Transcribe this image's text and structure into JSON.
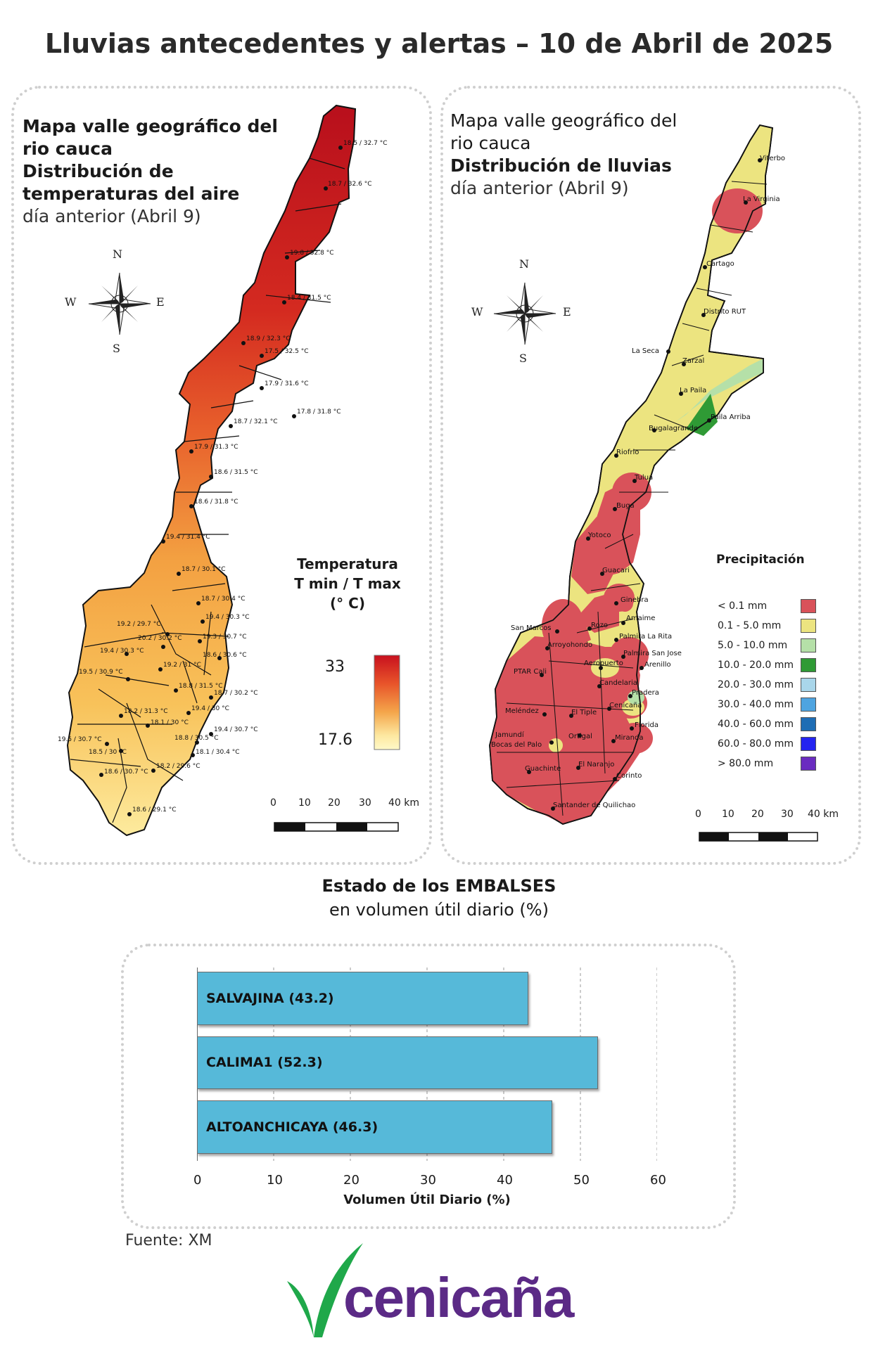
{
  "title": "Lluvias antecedentes y alertas – 10 de Abril de 2025",
  "temp_panel": {
    "title_line1": "Mapa valle geográfico del",
    "title_line2": "rio cauca",
    "title_line3": "Distribución de",
    "title_line4": "temperaturas del aire",
    "subtitle": "día anterior (Abril 9)",
    "legend_title_line1": "Temperatura",
    "legend_title_line2": "T min / T max",
    "legend_title_line3": "(° C)",
    "legend_max": "33",
    "legend_min": "17.6",
    "gradient_colors": [
      "#c8101e",
      "#e8542a",
      "#f4a54a",
      "#fde8a0",
      "#fff9c8"
    ],
    "stations": [
      "18.5 / 32.7 °C",
      "18.7 / 32.6 °C",
      "19.8 / 32.8 °C",
      "18.4 / 31.5 °C",
      "18.9 / 32.3 °C",
      "17.5 / 32.5 °C",
      "17.9 / 31.6 °C",
      "17.8 / 31.8 °C",
      "18.7 / 32.1 °C",
      "17.9 / 31.3 °C",
      "18.6 / 31.5 °C",
      "18.6 / 31.8 °C",
      "19.4 / 31.4 °C",
      "18.7 / 30.1 °C",
      "18.7 / 30.4 °C",
      "19.4 / 30.3 °C",
      "19.2 / 29.7 °C",
      "20.2 / 30.2 °C",
      "19.3 / 30.7 °C",
      "19.4 / 30.3 °C",
      "18.6 / 30.6 °C",
      "19.5 / 30.9 °C",
      "19.2 / 31 °C",
      "18.8 / 31.5 °C",
      "18.7 / 30.2 °C",
      "18.2 / 31.3 °C",
      "19.4 / 30 °C",
      "18.1 / 30 °C",
      "19.4 / 30.7 °C",
      "19.5 / 30.7 °C",
      "18.8 / 30.5 °C",
      "18.5 / 30 °C",
      "18.1 / 30.4 °C",
      "18.6 / 30.7 °C",
      "18.2 / 29.6 °C",
      "18.6 / 29.1 °C"
    ],
    "compass": {
      "n": "N",
      "s": "S",
      "e": "E",
      "w": "W"
    },
    "scale": [
      "0",
      "10",
      "20",
      "30",
      "40 km"
    ]
  },
  "rain_panel": {
    "title_line1": "Mapa valle geográfico del",
    "title_line2": "rio cauca",
    "title_line3": "Distribución de lluvias",
    "subtitle": "día anterior (Abril 9)",
    "legend_title": "Precipitación",
    "legend": [
      {
        "label": "< 0.1 mm",
        "color": "#d9525a"
      },
      {
        "label": "0.1 - 5.0 mm",
        "color": "#ece480"
      },
      {
        "label": "5.0 - 10.0 mm",
        "color": "#b5e0a8"
      },
      {
        "label": "10.0 - 20.0 mm",
        "color": "#2f9a35"
      },
      {
        "label": "20.0 - 30.0 mm",
        "color": "#a9d6ea"
      },
      {
        "label": "30.0 - 40.0 mm",
        "color": "#4ea4e0"
      },
      {
        "label": "40.0 - 60.0 mm",
        "color": "#1e6db4"
      },
      {
        "label": "60.0 - 80.0 mm",
        "color": "#2424f0"
      },
      {
        "label": "> 80.0 mm",
        "color": "#6a2cc0"
      }
    ],
    "places": [
      "Viterbo",
      "La Virginia",
      "Cartago",
      "Distrito RUT",
      "La Seca",
      "Zarzal",
      "La Paila",
      "Paila Arriba",
      "Bugalagrande",
      "Riofrio",
      "Tulua",
      "Buga",
      "Yotoco",
      "Guacari",
      "Ginebra",
      "San Marcos",
      "Rozo",
      "Amaime",
      "Palmira La Rita",
      "Arroyohondo",
      "Palmira San Jose",
      "Aeropuerto",
      "Arenillo",
      "PTAR Cali",
      "Candelaria",
      "Pradera",
      "Cenicaña",
      "Meléndez",
      "El Tiple",
      "Florida",
      "Jamundí",
      "Bocas del Palo",
      "Ortigal",
      "Miranda",
      "El Naranjo",
      "Guachinte",
      "Corinto",
      "Santander de Quilichao"
    ],
    "compass": {
      "n": "N",
      "s": "S",
      "e": "E",
      "w": "W"
    },
    "scale": [
      "0",
      "10",
      "20",
      "30",
      "40 km"
    ]
  },
  "reservoirs": {
    "title": "Estado de los EMBALSES",
    "subtitle": "en volumen útil diario (%)",
    "xlabel": "Volumen Útil Diario (%)",
    "source": "Fuente: XM"
  },
  "chart_data": {
    "type": "bar",
    "orientation": "horizontal",
    "categories": [
      "SALVAJINA (43.2)",
      "CALIMA1 (52.3)",
      "ALTOANCHICAYA (46.3)"
    ],
    "values": [
      43.2,
      52.3,
      46.3
    ],
    "xlabel": "Volumen Útil Diario (%)",
    "xlim": [
      0,
      60
    ],
    "xticks": [
      "0",
      "10",
      "20",
      "30",
      "40",
      "50",
      "60"
    ],
    "bar_color": "#56b9d9",
    "grid": "vertical dashed"
  },
  "logo": {
    "text": "cenicaña",
    "text_color": "#5b2a86",
    "leaf_color": "#1fa84a"
  }
}
